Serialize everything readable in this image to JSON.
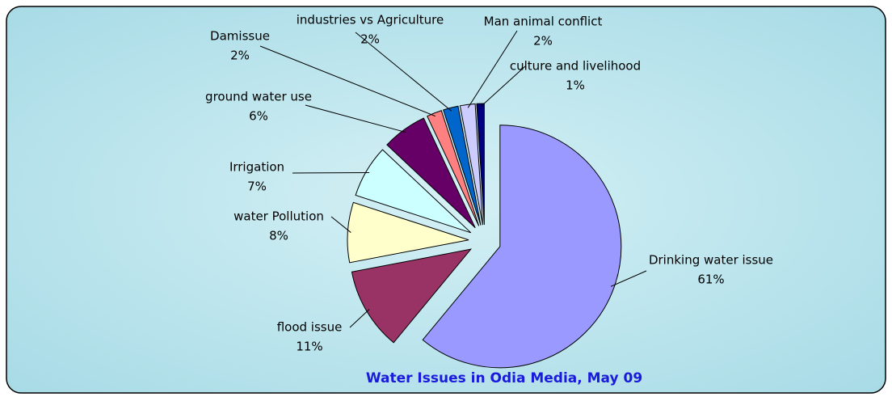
{
  "chart_data": {
    "type": "pie",
    "title": "Water Issues in Odia Media, May 09",
    "categories": [
      "Drinking water issue",
      "flood issue",
      "water Pollution",
      "Irrigation",
      "ground water use",
      "Damissue",
      "industries vs Agriculture",
      "Man animal conflict",
      "culture and livelihood"
    ],
    "values": [
      61,
      11,
      8,
      7,
      6,
      2,
      2,
      2,
      1
    ],
    "value_labels": [
      "61%",
      "11%",
      "8%",
      "7%",
      "6%",
      "2%",
      "2%",
      "2%",
      "1%"
    ],
    "colors": [
      "#9999ff",
      "#993366",
      "#ffffcc",
      "#ccffff",
      "#660066",
      "#ff8080",
      "#0066cc",
      "#ccccff",
      "#000080"
    ]
  }
}
